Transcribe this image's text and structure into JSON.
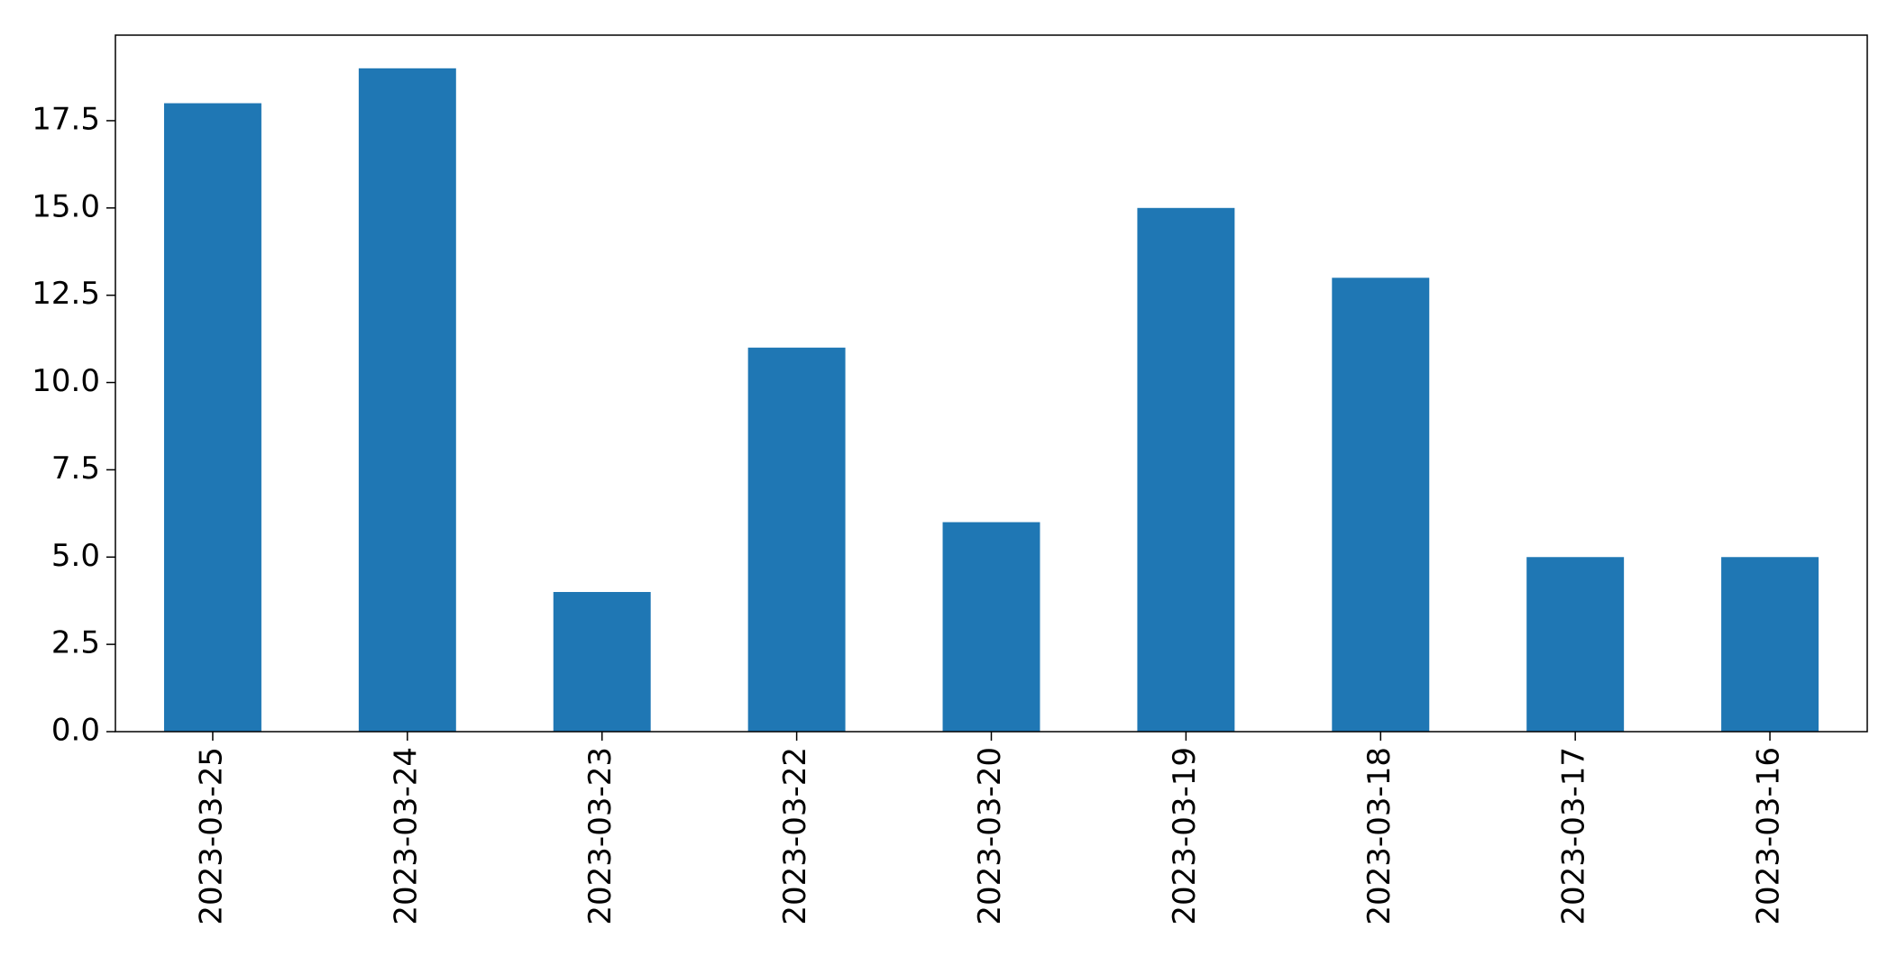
{
  "chart_data": {
    "type": "bar",
    "title": "",
    "xlabel": "",
    "ylabel": "",
    "categories": [
      "2023-03-25",
      "2023-03-24",
      "2023-03-23",
      "2023-03-22",
      "2023-03-20",
      "2023-03-19",
      "2023-03-18",
      "2023-03-17",
      "2023-03-16"
    ],
    "values": [
      18,
      19,
      4,
      11,
      6,
      15,
      13,
      5,
      5
    ],
    "ylim": [
      0,
      19.95
    ],
    "yticks": [
      "0.0",
      "2.5",
      "5.0",
      "7.5",
      "10.0",
      "12.5",
      "15.0",
      "17.5"
    ],
    "bar_color": "#1f77b4",
    "grid": false,
    "legend": "none"
  }
}
